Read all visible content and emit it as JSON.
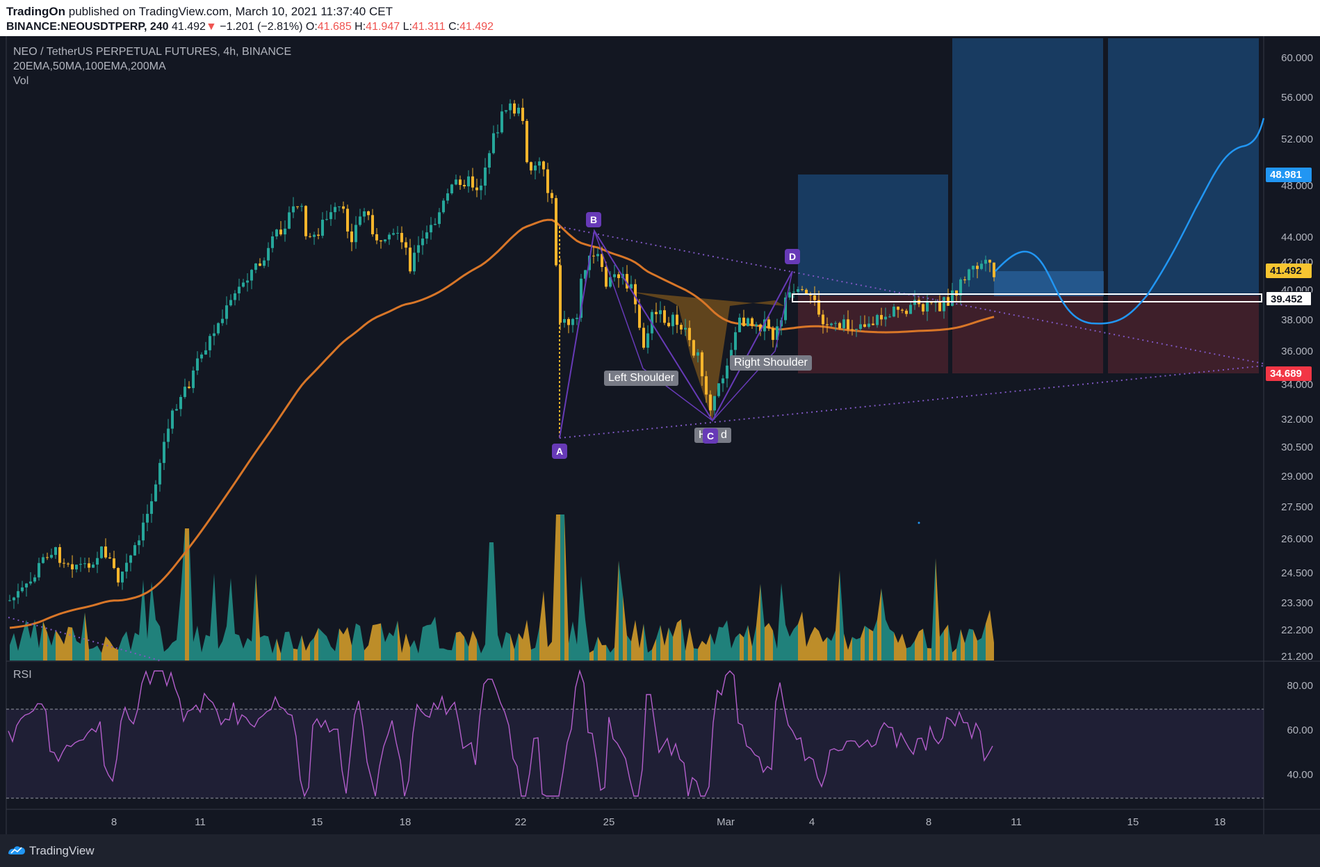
{
  "header": {
    "author": "TradingOn",
    "published": "published on TradingView.com, March 10, 2021 11:37:40 CET",
    "symbol": "BINANCE:NEOUSDTPERP, 240",
    "last": "41.492",
    "change_arrow": "▼",
    "change": "−1.201 (−2.81%)",
    "o_label": "O:",
    "o": "41.685",
    "h_label": "H:",
    "h": "41.947",
    "l_label": "L:",
    "l": "41.311",
    "c_label": "C:",
    "c": "41.492"
  },
  "legend": {
    "title": "NEO / TetherUS PERPETUAL FUTURES, 4h, BINANCE",
    "indicators": "20EMA,50MA,100EMA,200MA",
    "vol": "Vol",
    "rsi": "RSI"
  },
  "price_axis": [
    "60.000",
    "56.000",
    "52.000",
    "48.000",
    "44.000",
    "42.000",
    "40.000",
    "38.000",
    "36.000",
    "34.000",
    "32.000",
    "30.500",
    "29.000",
    "27.500",
    "26.000",
    "24.500",
    "23.300",
    "22.200",
    "21.200"
  ],
  "price_tags": {
    "target": "48.981",
    "current": "41.492",
    "level": "39.452",
    "stop": "34.689"
  },
  "rsi_axis": [
    "80.00",
    "60.00",
    "40.00"
  ],
  "time_axis": [
    "8",
    "11",
    "15",
    "18",
    "22",
    "25",
    "Mar",
    "4",
    "8",
    "11",
    "15",
    "18"
  ],
  "pattern_labels": {
    "a": "A",
    "b": "B",
    "c": "C",
    "d": "D",
    "left_shoulder": "Left Shoulder",
    "right_shoulder": "Right Shoulder",
    "head_prefix": "H",
    "head_suffix": "d"
  },
  "colors": {
    "up": "#26a69a",
    "down": "#f7b52c",
    "ema": "#e07b24",
    "pattern": "#673ab7",
    "projection": "#2196f3",
    "rsi": "#b35ecb",
    "target_tag": "#2196f3",
    "current_tag": "#f7c531",
    "stop_tag": "#f23645"
  },
  "chart_data": {
    "type": "candlestick",
    "symbol": "NEO / TetherUS PERPETUAL FUTURES",
    "timeframe": "4h",
    "last_ohlc": {
      "open": 41.685,
      "high": 41.947,
      "low": 41.311,
      "close": 41.492
    },
    "key_levels": {
      "target": 48.981,
      "neckline": 39.452,
      "stop": 34.689
    },
    "pattern": "inverse head and shoulders / ABCD",
    "price_ylim": [
      21.2,
      61.5
    ],
    "rsi_levels": [
      30,
      70
    ]
  },
  "footer": {
    "brand": "TradingView"
  }
}
